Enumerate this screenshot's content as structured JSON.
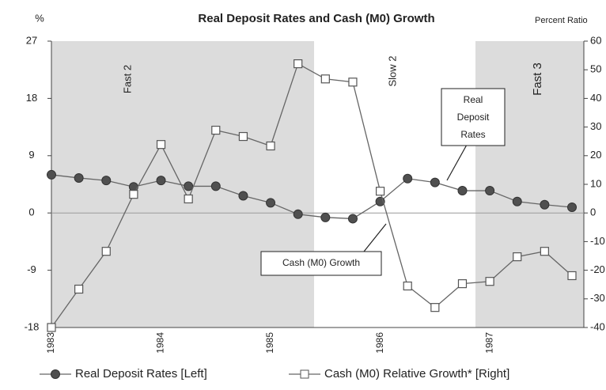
{
  "chart_data": {
    "type": "line",
    "title": "Real Deposit Rates and Cash (M0) Growth",
    "ylabel": "%",
    "y2label": "Percent Ratio",
    "categories": [
      "1983",
      null,
      null,
      null,
      "1984",
      null,
      null,
      null,
      "1985",
      null,
      null,
      null,
      "1986",
      null,
      null,
      null,
      "1987",
      null,
      null,
      null
    ],
    "series": [
      {
        "name": "Real Deposit Rates [Left]",
        "color": "#505050",
        "marker": "circle",
        "values": [
          6.0,
          5.5,
          5.1,
          4.1,
          5.1,
          4.2,
          4.2,
          2.7,
          1.6,
          -0.2,
          -0.7,
          -0.9,
          1.8,
          5.4,
          4.8,
          3.5,
          3.5,
          1.8,
          1.3,
          0.9
        ]
      },
      {
        "name": "Cash (M0) Relative Growth* [Right]",
        "color": "#ffffff",
        "marker": "square",
        "axis": "y2",
        "values": [
          -40,
          -26.6,
          -13.4,
          6.5,
          23.9,
          4.9,
          28.9,
          26.7,
          23.4,
          52.1,
          46.8,
          45.7,
          7.6,
          -25.5,
          -33,
          -24.7,
          -23.9,
          -15.3,
          -13.4,
          -21.9
        ]
      }
    ],
    "ylim": [
      -18,
      27
    ],
    "yticks": [
      -18,
      -9,
      0,
      9,
      18,
      27
    ],
    "y2lim": [
      -40,
      60
    ],
    "y2ticks": [
      -40,
      -30,
      -20,
      -10,
      0,
      10,
      20,
      30,
      40,
      50,
      60
    ],
    "regions": [
      "Fast 2",
      "Slow 2",
      "Fast 3"
    ],
    "callouts": [
      {
        "lines": [
          "Real",
          "Deposit",
          "Rates"
        ]
      },
      {
        "lines": [
          "Cash (M0) Growth"
        ]
      }
    ]
  }
}
